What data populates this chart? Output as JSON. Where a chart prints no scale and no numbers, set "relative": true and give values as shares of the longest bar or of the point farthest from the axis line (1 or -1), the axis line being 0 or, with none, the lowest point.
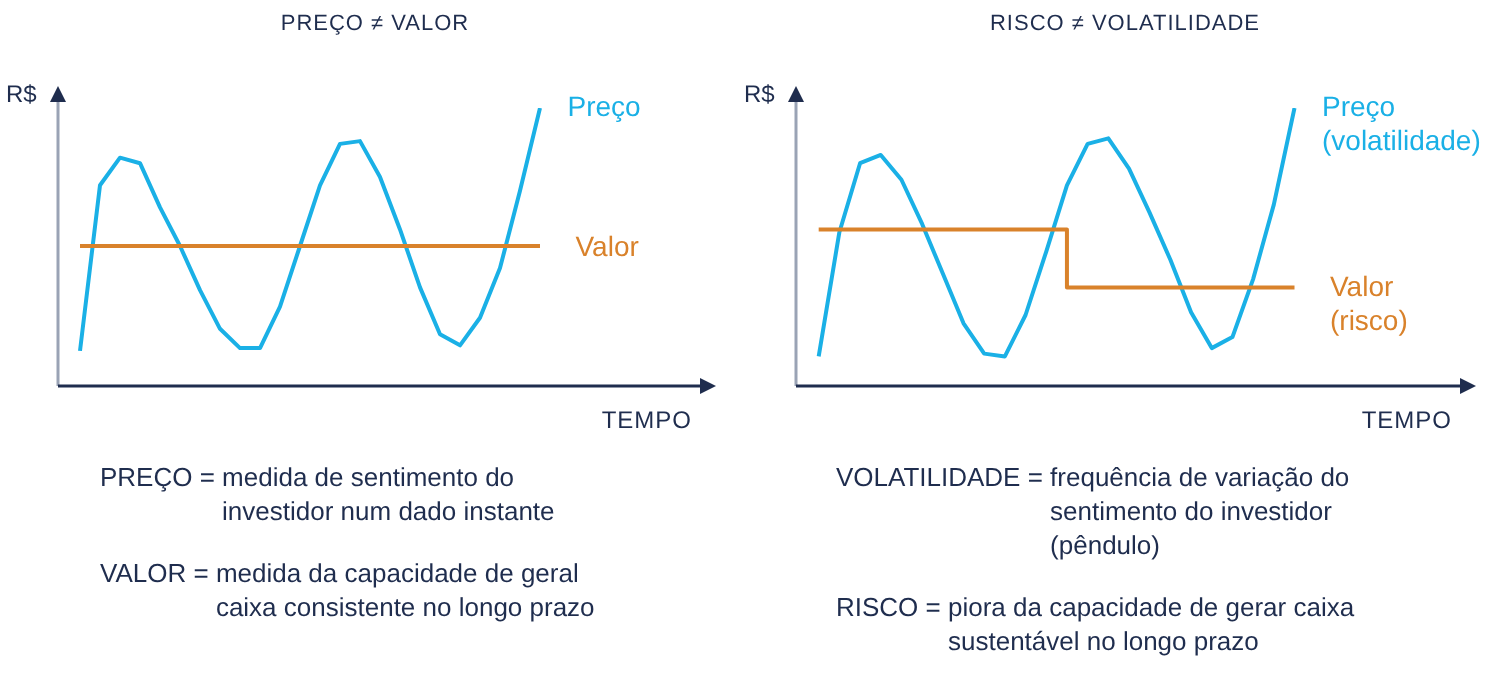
{
  "chart_data": [
    {
      "type": "line",
      "title": "PREÇO ≠ VALOR",
      "xlabel": "TEMPO",
      "ylabel": "R$",
      "relative": true,
      "marker": "none",
      "categories": [
        null,
        null,
        null,
        null,
        null,
        null,
        null,
        null,
        null,
        null,
        null,
        null,
        null,
        null,
        null,
        null,
        null,
        null,
        null,
        null,
        null,
        null,
        null,
        null
      ],
      "series": [
        {
          "name": "Preço",
          "color": "#1ab0e6",
          "values": [
            0.12,
            0.72,
            0.82,
            0.8,
            0.64,
            0.5,
            0.34,
            0.2,
            0.13,
            0.13,
            0.28,
            0.5,
            0.72,
            0.87,
            0.88,
            0.75,
            0.56,
            0.35,
            0.18,
            0.14,
            0.24,
            0.42,
            0.7,
            1
          ]
        },
        {
          "name": "Valor",
          "color": "#d9822b",
          "values": [
            0.5,
            0.5,
            0.5,
            0.5,
            0.5,
            0.5,
            0.5,
            0.5,
            0.5,
            0.5,
            0.5,
            0.5,
            0.5,
            0.5,
            0.5,
            0.5,
            0.5,
            0.5,
            0.5,
            0.5,
            0.5,
            0.5,
            0.5,
            0.5
          ]
        }
      ],
      "annotations": [
        "PREÇO = medida de sentimento do investidor num dado instante",
        "VALOR = medida da capacidade de geral caixa consistente no longo prazo"
      ]
    },
    {
      "type": "line",
      "title": "RISCO ≠ VOLATILIDADE",
      "xlabel": "TEMPO",
      "ylabel": "R$",
      "relative": true,
      "marker": "none",
      "categories": [
        null,
        null,
        null,
        null,
        null,
        null,
        null,
        null,
        null,
        null,
        null,
        null,
        null,
        null,
        null,
        null,
        null,
        null,
        null,
        null,
        null,
        null,
        null,
        null
      ],
      "series": [
        {
          "name": "Preço (volatilidade)",
          "color": "#1ab0e6",
          "values": [
            0.1,
            0.55,
            0.8,
            0.83,
            0.74,
            0.58,
            0.4,
            0.22,
            0.11,
            0.1,
            0.25,
            0.48,
            0.72,
            0.87,
            0.89,
            0.78,
            0.62,
            0.45,
            0.26,
            0.13,
            0.17,
            0.38,
            0.65,
            1
          ]
        },
        {
          "name": "Valor (risco)",
          "type": "step",
          "color": "#d9822b",
          "values": [
            0.56,
            0.56,
            0.56,
            0.56,
            0.56,
            0.56,
            0.56,
            0.56,
            0.56,
            0.56,
            0.56,
            0.56,
            0.35,
            0.35,
            0.35,
            0.35,
            0.35,
            0.35,
            0.35,
            0.35,
            0.35,
            0.35,
            0.35,
            0.35
          ]
        }
      ],
      "annotations": [
        "VOLATILIDADE = frequência de variação do sentimento do investidor (pêndulo)",
        "RISCO = piora da capacidade de gerar caixa sustentável no longo prazo"
      ]
    }
  ]
}
